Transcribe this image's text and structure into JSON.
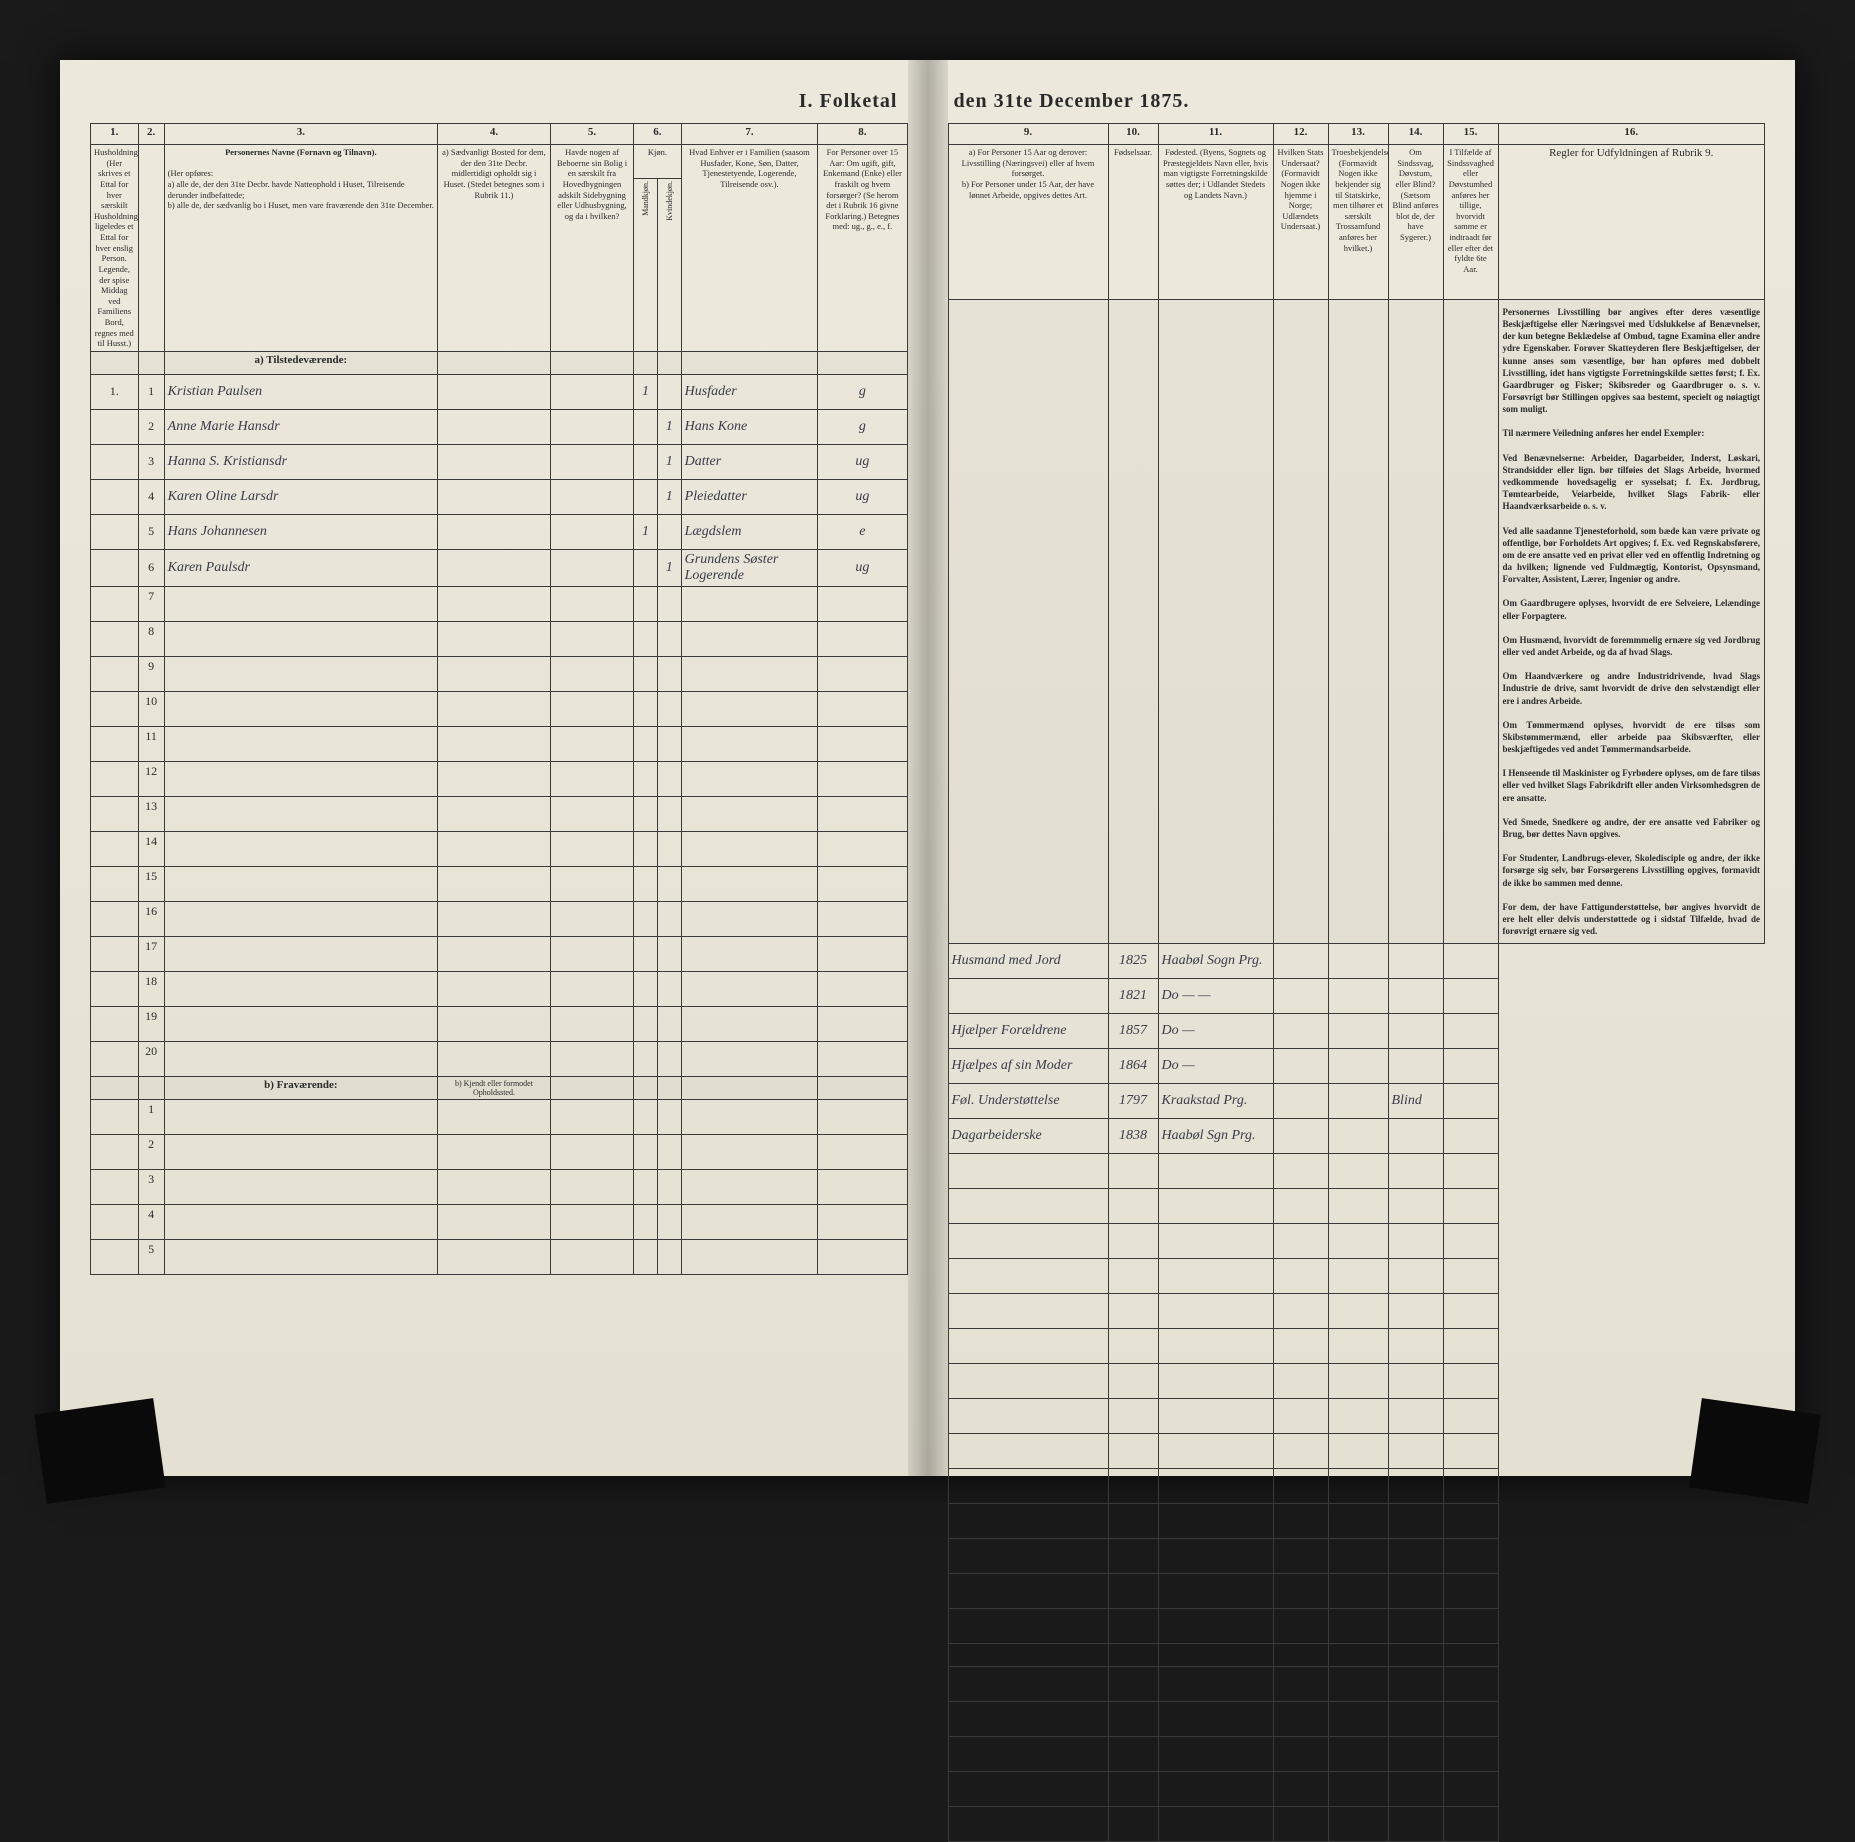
{
  "document": {
    "title_left": "I. Folketal",
    "title_right": "den 31te December 1875.",
    "background_color": "#e8e4d8",
    "ink_color": "#2a2a2a",
    "handwriting_color": "#3a3a4a"
  },
  "columns": {
    "c1": {
      "num": "1.",
      "header": "Husholdninger. (Her skrives et Ettal for hver særskilt Husholdning; ligeledes et Ettal for hver enslig Person. Legende, der spise Middag ved Familiens Bord, regnes med til Husst.)"
    },
    "c2": {
      "num": "2.",
      "header": "Personernes Nr."
    },
    "c3": {
      "num": "3.",
      "header_title": "Personernes Navne (Fornavn og Tilnavn).",
      "header_body": "(Her opføres:\na) alle de, der den 31te Decbr. havde Natteophold i Huset, Tilreisende derunder indbefattede;\nb) alle de, der sædvanlig bo i Huset, men vare fraværende den 31te December."
    },
    "c4": {
      "num": "4.",
      "header": "a) Sædvanligt Bosted for dem, der den 31te Decbr. midlertidigt opholdt sig i Huset. (Stedet betegnes som i Rubrik 11.)",
      "header_b": "b) Kjendt eller formodet Opholdssted."
    },
    "c5": {
      "num": "5.",
      "header": "Havde nogen af Beboerne sin Bolig i en særskilt fra Hovedbygningen adskilt Sidebygning eller Udhusbygning, og da i hvilken?"
    },
    "c6": {
      "num": "6.",
      "header_top": "Kjøn.",
      "m": "Mandkjøn.",
      "k": "Kvindekjøn."
    },
    "c7": {
      "num": "7.",
      "header": "Hvad Enhver er i Familien (saasom Husfader, Kone, Søn, Datter, Tjenestetyende, Logerende, Tilreisende osv.)."
    },
    "c8": {
      "num": "8.",
      "header": "For Personer over 15 Aar: Om ugift, gift, Enkemand (Enke) eller fraskilt og hvem forsørger? (Se herom det i Rubrik 16 givne Forklaring.) Betegnes med: ug., g., e., f."
    },
    "c9": {
      "num": "9.",
      "header": "a) For Personer 15 Aar og derover: Livsstilling (Næringsvei) eller af hvem forsørget.\nb) For Personer under 15 Aar, der have lønnet Arbeide, opgives dettes Art."
    },
    "c10": {
      "num": "10.",
      "header": "Fødselsaar."
    },
    "c11": {
      "num": "11.",
      "header": "Fødested. (Byens, Sognets og Præstegjeldets Navn eller, hvis man vigtigste Forretningskilde søttes der; i Udlandet Stedets og Landets Navn.)"
    },
    "c12": {
      "num": "12.",
      "header": "Hvilken Stats Undersaat? (Formavidt Nogen ikke hjemme i Norge; Udlændets Undersaat.)"
    },
    "c13": {
      "num": "13.",
      "header": "Troesbekjendelse. (Formavidt Nogen ikke bekjender sig til Statskirke, men tilhører et særskilt Trossamfund anføres her hvilket.)"
    },
    "c14": {
      "num": "14.",
      "header": "Om Sindssvag, Døvstum, eller Blind? (Sætsom Blind anføres blot de, der have Sygerer.)"
    },
    "c15": {
      "num": "15.",
      "header": "I Tilfælde af Sindssvaghed eller Døvstumhed anføres her tillige, hvorvidt samme er indtraadt før eller efter det fyldte 6te Aar."
    },
    "c16": {
      "num": "16.",
      "header_title": "Regler for Udfyldningen af Rubrik 9."
    }
  },
  "sections": {
    "a": "a) Tilstedeværende:",
    "b": "b) Fraværende:"
  },
  "rows": [
    {
      "hh": "1.",
      "pn": "1",
      "name": "Kristian Paulsen",
      "c5": "",
      "sex_m": "1",
      "sex_k": "",
      "fam": "Husfader",
      "civ": "g",
      "occ": "Husmand med Jord",
      "year": "1825",
      "place": "Haabøl Sogn Prg."
    },
    {
      "hh": "",
      "pn": "2",
      "name": "Anne Marie Hansdr",
      "c5": "",
      "sex_m": "",
      "sex_k": "1",
      "fam": "Hans Kone",
      "civ": "g",
      "occ": "",
      "year": "1821",
      "place": "Do — —"
    },
    {
      "hh": "",
      "pn": "3",
      "name": "Hanna S. Kristiansdr",
      "c5": "",
      "sex_m": "",
      "sex_k": "1",
      "fam": "Datter",
      "civ": "ug",
      "occ": "Hjælper Forældrene",
      "year": "1857",
      "place": "Do —"
    },
    {
      "hh": "",
      "pn": "4",
      "name": "Karen Oline Larsdr",
      "c5": "",
      "sex_m": "",
      "sex_k": "1",
      "fam": "Pleiedatter",
      "civ": "ug",
      "occ": "Hjælpes af sin Moder",
      "year": "1864",
      "place": "Do —"
    },
    {
      "hh": "",
      "pn": "5",
      "name": "Hans Johannesen",
      "c5": "",
      "sex_m": "1",
      "sex_k": "",
      "fam": "Lægdslem",
      "civ": "e",
      "occ": "Føl. Understøttelse",
      "year": "1797",
      "place": "Kraakstad Prg.",
      "c14": "Blind"
    },
    {
      "hh": "",
      "pn": "6",
      "name": "Karen Paulsdr",
      "c5": "",
      "sex_m": "",
      "sex_k": "1",
      "fam": "Grundens Søster Logerende",
      "civ": "ug",
      "occ": "Dagarbeiderske",
      "year": "1838",
      "place": "Haabøl Sgn Prg."
    }
  ],
  "empty_rows_a": [
    7,
    8,
    9,
    10,
    11,
    12,
    13,
    14,
    15,
    16,
    17,
    18,
    19,
    20
  ],
  "empty_rows_b": [
    1,
    2,
    3,
    4,
    5
  ],
  "instructions": {
    "title": "Personernes Livsstilling",
    "body": "bør angives efter deres væsentlige Beskjæftigelse eller Næringsvei med Udslukkelse af Benævnelser, der kun betegne Beklædelse af Ombud, tagne Examina eller andre ydre Egenskaber. Forøver Skatteyderen flere Beskjæftigelser, der kunne anses som væsentlige, bør han opføres med dobbelt Livsstilling, idet hans vigtigste Forretningskilde sættes først; f. Ex. Gaardbruger og Fisker; Skibsreder og Gaardbruger o. s. v. Forsøvrigt bør Stillingen opgives saa bestemt, specielt og nøiagtigt som muligt.\n\nTil nærmere Veiledning anføres her endel Exempler:\n\nVed Benævnelserne: Arbeider, Dagarbeider, Inderst, Løskari, Strandsidder eller lign. bør tilføies det Slags Arbeide, hvormed vedkommende hovedsagelig er sysselsat; f. Ex. Jordbrug, Tømtearbeide, Veiarbeide, hvilket Slags Fabrik- eller Haandværksarbeide o. s. v.\n\nVed alle saadanne Tjenesteforhold, som bæde kan være private og offentlige, bør Forholdets Art opgives; f. Ex. ved Regnskabsførere, om de ere ansatte ved en privat eller ved en offentlig Indretning og da hvilken; lignende ved Fuldmægtig, Kontorist, Opsynsmand, Forvalter, Assistent, Lærer, Ingeniør og andre.\n\nOm Gaardbrugere oplyses, hvorvidt de ere Selveiere, Lelændinge eller Forpagtere.\n\nOm Husmænd, hvorvidt de foremmmelig ernære sig ved Jordbrug eller ved andet Arbeide, og da af hvad Slags.\n\nOm Haandværkere og andre Industridrivende, hvad Slags Industrie de drive, samt hvorvidt de drive den selvstændigt eller ere i andres Arbeide.\n\nOm Tømmermænd oplyses, hvorvidt de ere tilsøs som Skibstømmermænd, eller arbeide paa Skibsværfter, eller beskjæftigedes ved andet Tømmermandsarbeide.\n\nI Henseende til Maskinister og Fyrbødere oplyses, om de fare tilsøs eller ved hvilket Slags Fabrikdrift eller anden Virksomhedsgren de ere ansatte.\n\nVed Smede, Snedkere og andre, der ere ansatte ved Fabriker og Brug, bør dettes Navn opgives.\n\nFor Studenter, Landbrugs-elever, Skoledisciple og andre, der ikke forsørge sig selv, bør Forsørgerens Livsstilling opgives, formavidt de ikke bo sammen med denne.\n\nFor dem, der have Fattigunderstøttelse, bør angives hvorvidt de ere helt eller delvis understøttede og i sidstaf Tilfælde, hvad de forøvrigt ernære sig ved."
  }
}
